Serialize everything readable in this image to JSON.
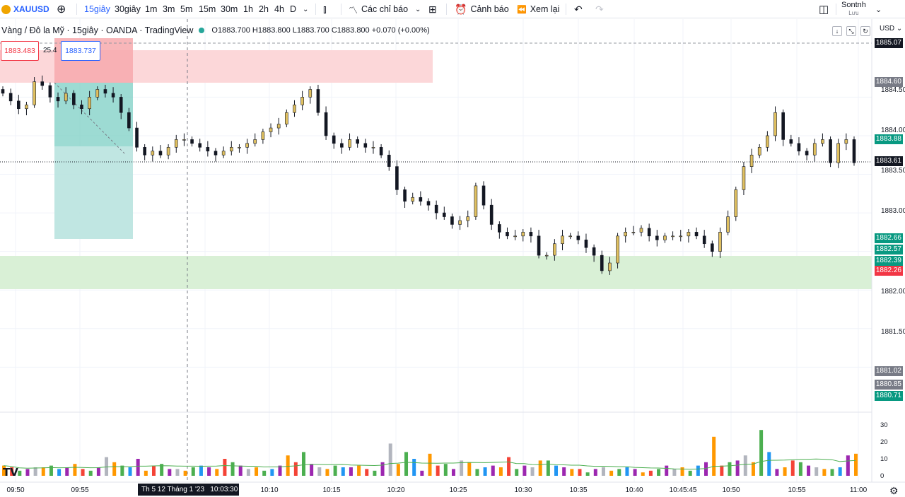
{
  "toolbar": {
    "symbol": "XAUUSD",
    "intervals": [
      "15giây",
      "30giây",
      "1m",
      "3m",
      "5m",
      "15m",
      "30m",
      "1h",
      "2h",
      "4h",
      "D"
    ],
    "indicators": "Các chỉ báo",
    "alert": "Cảnh báo",
    "replay": "Xem lại",
    "user": "Sontnh",
    "user_sub": "Lưu"
  },
  "legend": {
    "title": "Vàng / Đô la Mỹ · 15giây · OANDA · TradingView",
    "ohlc": "O1883.700 H1883.800 L1883.700 C1883.800 +0.070 (+0.00%)"
  },
  "position": {
    "stop": "1883.483",
    "ratio": "25.4",
    "entry": "1883.737"
  },
  "currency": "USD",
  "price_axis": [
    "1884.50",
    "1884.00",
    "1883.50",
    "1883.00",
    "1882.00",
    "1881.50"
  ],
  "price_labels": {
    "p1885": "1885.07",
    "p1884_60": "1884.60",
    "p1883_88": "1883.88",
    "p1883_61": "1883.61",
    "p1882_66": "1882.66",
    "p1882_57": "1882.57",
    "p1882_39": "1882.39",
    "p1882_26": "1882.26",
    "p1881_02": "1881.02",
    "p1880_85": "1880.85",
    "p1880_71": "1880.71"
  },
  "volume_axis": [
    "30",
    "20",
    "10",
    "0"
  ],
  "time_axis": [
    "09:50",
    "09:55",
    "10:10",
    "10:15",
    "10:20",
    "10:25",
    "10:30",
    "10:35",
    "10:40",
    "10:45:45",
    "10:50",
    "10:55",
    "11:00"
  ],
  "crosshair_time": "Th 5 12 Tháng 1 '23",
  "crosshair_clock": "10:03:30",
  "colors": {
    "up": "#e0c060",
    "down": "#131722",
    "red_zone": "#fcd7d9",
    "green_zone": "#d9f0d6",
    "teal": "#26a69a",
    "label_red": "#f23645",
    "label_green": "#089981",
    "label_gray": "#787b86"
  },
  "chart_data": {
    "type": "candlestick",
    "ylim": [
      1880.6,
      1885.2
    ],
    "x_labels": [
      "09:50",
      "09:55",
      "10:10",
      "10:15",
      "10:20",
      "10:25",
      "10:30",
      "10:35",
      "10:40",
      "10:45:45",
      "10:50",
      "10:55",
      "11:00"
    ],
    "close": [
      1884.55,
      1884.45,
      1884.35,
      1884.4,
      1884.7,
      1884.65,
      1884.5,
      1884.45,
      1884.55,
      1884.4,
      1884.35,
      1884.5,
      1884.6,
      1884.55,
      1884.5,
      1884.3,
      1884.1,
      1883.85,
      1883.75,
      1883.8,
      1883.75,
      1883.85,
      1883.95,
      1883.95,
      1883.9,
      1883.85,
      1883.8,
      1883.75,
      1883.8,
      1883.85,
      1883.85,
      1883.9,
      1883.95,
      1884.05,
      1884.1,
      1884.15,
      1884.3,
      1884.4,
      1884.5,
      1884.6,
      1884.3,
      1884.0,
      1883.9,
      1883.85,
      1883.95,
      1883.9,
      1883.85,
      1883.85,
      1883.75,
      1883.6,
      1883.3,
      1883.15,
      1883.2,
      1883.15,
      1883.1,
      1883.0,
      1882.95,
      1882.85,
      1882.9,
      1882.95,
      1883.35,
      1883.1,
      1882.85,
      1882.75,
      1882.7,
      1882.7,
      1882.75,
      1882.7,
      1882.45,
      1882.45,
      1882.6,
      1882.7,
      1882.7,
      1882.65,
      1882.55,
      1882.45,
      1882.25,
      1882.35,
      1882.7,
      1882.75,
      1882.75,
      1882.8,
      1882.7,
      1882.65,
      1882.7,
      1882.7,
      1882.7,
      1882.75,
      1882.7,
      1882.6,
      1882.5,
      1882.75,
      1882.95,
      1883.3,
      1883.6,
      1883.75,
      1883.85,
      1884.0,
      1884.3,
      1883.95,
      1883.9,
      1883.8,
      1883.75,
      1883.9,
      1883.95,
      1883.65,
      1883.9,
      1883.95,
      1883.65
    ]
  },
  "volume_data": {
    "max": 34,
    "values": [
      6,
      5,
      3,
      4,
      5,
      5,
      6,
      4,
      5,
      7,
      4,
      3,
      5,
      11,
      8,
      6,
      5,
      10,
      3,
      6,
      7,
      4,
      4,
      3,
      5,
      6,
      5,
      4,
      10,
      8,
      6,
      4,
      5,
      3,
      4,
      6,
      12,
      8,
      14,
      7,
      5,
      4,
      6,
      5,
      5,
      6,
      4,
      3,
      8,
      19,
      7,
      14,
      10,
      3,
      13,
      6,
      7,
      4,
      9,
      8,
      4,
      5,
      6,
      5,
      11,
      4,
      6,
      5,
      9,
      9,
      6,
      5,
      4,
      4,
      2,
      4,
      5,
      3,
      4,
      5,
      4,
      2,
      3,
      4,
      6,
      4,
      5,
      3,
      6,
      8,
      23,
      6,
      8,
      9,
      12,
      8,
      27,
      14,
      4,
      5,
      9,
      8,
      6,
      5,
      4,
      4,
      5,
      12,
      13
    ],
    "colors_cycle": [
      "#ff9800",
      "#f44336",
      "#4caf50",
      "#2196f3",
      "#9c27b0",
      "#b2b5be"
    ]
  }
}
